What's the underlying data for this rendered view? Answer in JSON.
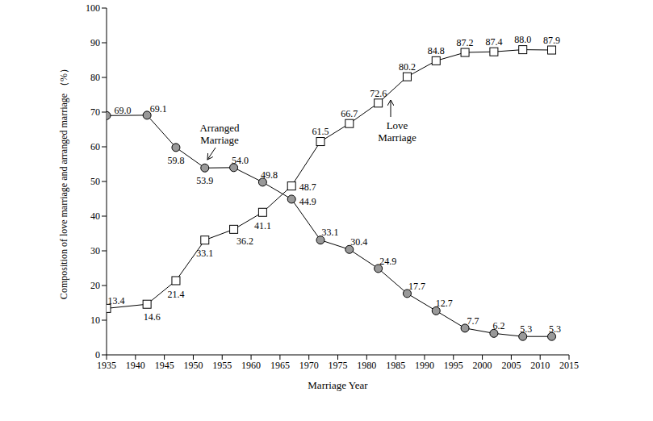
{
  "chart_data": {
    "type": "line",
    "xlabel": "Marriage Year",
    "ylabel": "Composition of love marriage and arranged marriage （%）",
    "x": [
      1935,
      1942,
      1947,
      1952,
      1957,
      1962,
      1967,
      1972,
      1977,
      1982,
      1987,
      1992,
      1997,
      2002,
      2007,
      2012
    ],
    "xlim": [
      1935,
      2015
    ],
    "xticks": [
      1935,
      1940,
      1945,
      1950,
      1955,
      1960,
      1965,
      1970,
      1975,
      1980,
      1985,
      1990,
      1995,
      2000,
      2005,
      2010,
      2015
    ],
    "ylim": [
      0,
      100
    ],
    "yticks": [
      0,
      10,
      20,
      30,
      40,
      50,
      60,
      70,
      80,
      90,
      100
    ],
    "grid": false,
    "data_labels": true,
    "series": [
      {
        "name": "Arranged Marriage",
        "color": "#999999",
        "marker": "circle",
        "values": [
          69.0,
          69.1,
          59.8,
          53.9,
          54.0,
          49.8,
          44.9,
          33.1,
          30.4,
          24.9,
          17.7,
          12.7,
          7.7,
          6.2,
          5.3,
          5.3
        ],
        "value_labels": [
          "69.0",
          "69.1",
          "59.8",
          "53.9",
          "54.0",
          "49.8",
          "44.9",
          "33.1",
          "30.4",
          "24.9",
          "17.7",
          "12.7",
          "7.7",
          "6.2",
          "5.3",
          "5.3"
        ]
      },
      {
        "name": "Love Marriage",
        "color": "#ffffff",
        "marker": "square",
        "values": [
          13.4,
          14.6,
          21.4,
          33.1,
          36.2,
          41.1,
          48.7,
          61.5,
          66.7,
          72.6,
          80.2,
          84.8,
          87.2,
          87.4,
          88.0,
          87.9
        ],
        "value_labels": [
          "13.4",
          "14.6",
          "21.4",
          "33.1",
          "36.2",
          "41.1",
          "48.7",
          "61.5",
          "66.7",
          "72.6",
          "80.2",
          "84.8",
          "87.2",
          "87.4",
          "88.0",
          "87.9"
        ]
      }
    ]
  }
}
